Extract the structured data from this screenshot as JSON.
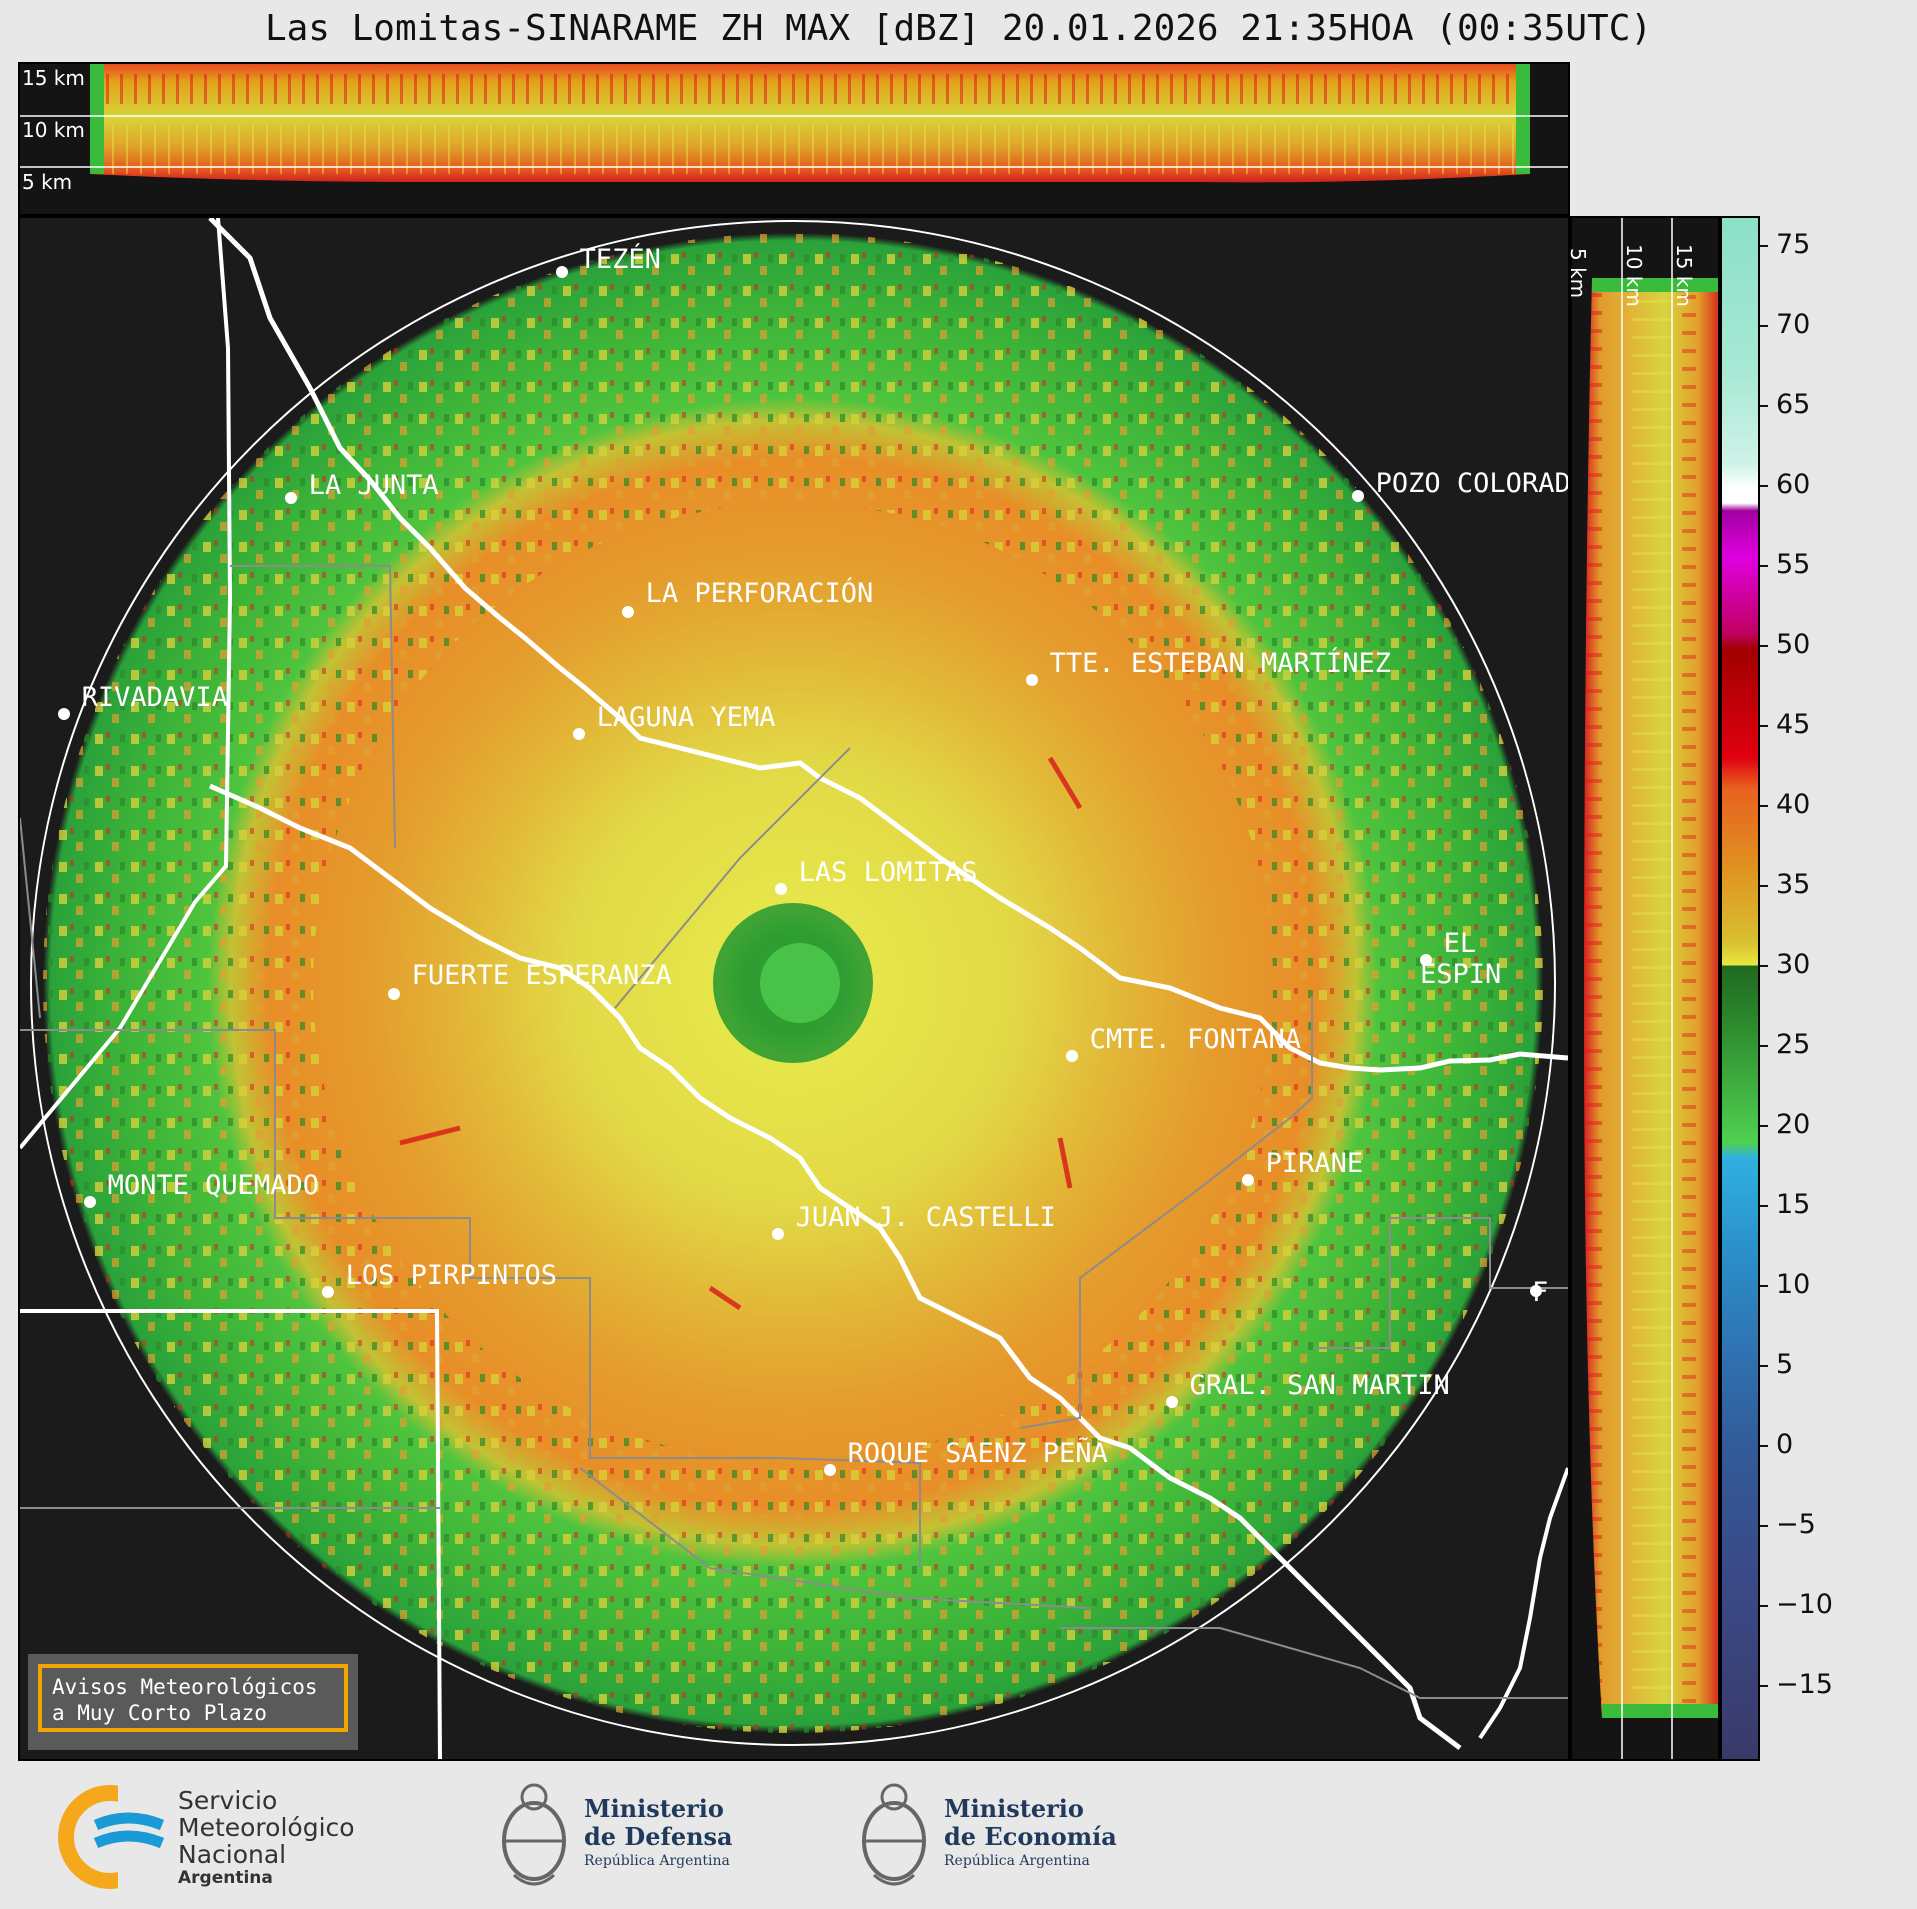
{
  "title": "Las Lomitas-SINARAME ZH MAX [dBZ] 20.01.2026 21:35HOA (00:35UTC)",
  "top_panel": {
    "heights": [
      "15 km",
      "10 km",
      "5 km"
    ]
  },
  "right_panel": {
    "heights": [
      "5 km",
      "10 km",
      "15 km"
    ]
  },
  "colorbar": {
    "ticks": [
      "75",
      "70",
      "65",
      "60",
      "55",
      "50",
      "45",
      "40",
      "35",
      "30",
      "25",
      "20",
      "15",
      "10",
      "5",
      "0",
      "−5",
      "−10",
      "−15"
    ],
    "min_dbz": -20,
    "max_dbz": 76
  },
  "places": [
    {
      "name": "TEZÉN"
    },
    {
      "name": "LA JUNTA"
    },
    {
      "name": "POZO COLORAD"
    },
    {
      "name": "LA PERFORACIÓN"
    },
    {
      "name": "TTE. ESTEBAN MARTÍNEZ"
    },
    {
      "name": "RIVADAVIA"
    },
    {
      "name": "LAGUNA YEMA"
    },
    {
      "name": "LAS LOMITAS"
    },
    {
      "name": "EL ESPIN"
    },
    {
      "name": "FUERTE ESPERANZA"
    },
    {
      "name": "CMTE. FONTANA"
    },
    {
      "name": "PIRANE"
    },
    {
      "name": "MONTE QUEMADO"
    },
    {
      "name": "JUAN J. CASTELLI"
    },
    {
      "name": "LOS PIRPINTOS"
    },
    {
      "name": "GRAL. SAN MARTIN"
    },
    {
      "name": "ROQUE SAENZ PEÑA"
    },
    {
      "name": "F"
    }
  ],
  "notice": {
    "line1": "Avisos Meteorológicos",
    "line2": "a Muy Corto Plazo"
  },
  "logos": {
    "smn": {
      "line1": "Servicio",
      "line2": "Meteorológico",
      "line3": "Nacional",
      "line4": "Argentina"
    },
    "defensa": {
      "line1": "Ministerio",
      "line2": "de Defensa",
      "line3": "República Argentina"
    },
    "economia": {
      "line1": "Ministerio",
      "line2": "de Economía",
      "line3": "República Argentina"
    }
  },
  "colors": {
    "background": "#1b1b1b",
    "notice_border": "#f0a500",
    "smn_blue": "#1a9ad6",
    "smn_orange": "#f5a81c"
  }
}
